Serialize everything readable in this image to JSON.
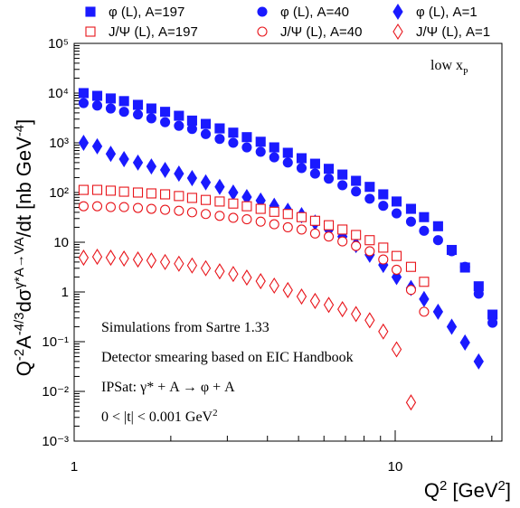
{
  "chart_data": {
    "type": "scatter",
    "x": [
      1.07,
      1.18,
      1.3,
      1.43,
      1.58,
      1.74,
      1.92,
      2.12,
      2.33,
      2.57,
      2.84,
      3.13,
      3.45,
      3.81,
      4.2,
      4.63,
      5.11,
      5.63,
      6.21,
      6.85,
      7.55,
      8.33,
      9.18,
      10.1,
      11.2,
      12.3,
      13.6,
      15.0,
      16.5,
      18.2,
      20.1
    ],
    "series": [
      {
        "name": "φ (L), A=197",
        "color": "#1a1aff",
        "marker": "square",
        "filled": true,
        "values": [
          10000,
          8800,
          7800,
          6900,
          5800,
          4900,
          4200,
          3500,
          2800,
          2400,
          1950,
          1600,
          1300,
          1050,
          810,
          630,
          490,
          380,
          300,
          230,
          172,
          130,
          92,
          66,
          47,
          32,
          21,
          7,
          3.1,
          1.3,
          0.35
        ]
      },
      {
        "name": "φ (L), A=40",
        "color": "#1a1aff",
        "marker": "circle",
        "filled": true,
        "values": [
          6300,
          5600,
          4900,
          4200,
          3700,
          3100,
          2600,
          2200,
          1900,
          1500,
          1200,
          1000,
          810,
          660,
          510,
          400,
          310,
          240,
          190,
          140,
          105,
          75,
          54,
          38,
          26,
          17,
          11,
          6.6,
          3.2,
          0.92,
          0.24
        ]
      },
      {
        "name": "φ (L), A=1",
        "color": "#1a1aff",
        "marker": "diamond",
        "filled": true,
        "values": [
          1000,
          850,
          600,
          470,
          400,
          335,
          285,
          240,
          195,
          160,
          130,
          100,
          81,
          69,
          54,
          43,
          35,
          25,
          18,
          13,
          8.8,
          5.6,
          3.5,
          2.0,
          1.2,
          0.72,
          0.4,
          0.2,
          0.096,
          0.04,
          null
        ]
      },
      {
        "name": "J/Ψ (L), A=197",
        "color": "#e8141a",
        "marker": "square",
        "filled": false,
        "values": [
          113,
          113,
          109,
          104,
          100,
          96,
          92,
          85,
          78,
          71,
          66,
          60,
          53,
          47,
          41,
          37,
          32,
          27,
          22,
          18,
          14,
          11,
          7.8,
          5.3,
          3.2,
          1.6,
          null,
          null,
          null,
          null,
          null
        ]
      },
      {
        "name": "J/Ψ (L), A=40",
        "color": "#e8141a",
        "marker": "circle",
        "filled": false,
        "values": [
          53,
          53,
          51,
          51,
          49,
          47,
          45,
          43,
          40,
          37,
          34,
          31,
          29,
          26,
          23,
          20,
          18,
          15,
          13,
          10.4,
          8.4,
          6.6,
          4.5,
          2.8,
          1.1,
          0.4,
          null,
          null,
          null,
          null,
          null
        ]
      },
      {
        "name": "J/Ψ (L), A=1",
        "color": "#e8141a",
        "marker": "diamond",
        "filled": false,
        "values": [
          4.9,
          5.1,
          4.9,
          4.7,
          4.5,
          4.3,
          4.0,
          3.7,
          3.4,
          3.0,
          2.6,
          2.3,
          1.95,
          1.65,
          1.34,
          1.09,
          0.81,
          0.66,
          0.55,
          0.45,
          0.36,
          0.27,
          0.16,
          0.07,
          0.006,
          null,
          null,
          null,
          null,
          null,
          null
        ]
      }
    ],
    "xlim": [
      1,
      21.5
    ],
    "ylim": [
      0.001,
      100000
    ],
    "xticks": [
      1,
      10
    ],
    "yticks": [
      {
        "value": 0.001,
        "label": "10⁻³"
      },
      {
        "value": 0.01,
        "label": "10⁻²"
      },
      {
        "value": 0.1,
        "label": "10⁻¹"
      },
      1,
      10,
      {
        "value": 100,
        "label": "10²"
      },
      {
        "value": 1000,
        "label": "10³"
      },
      {
        "value": 10000,
        "label": "10⁴"
      },
      {
        "value": 100000,
        "label": "10⁵"
      }
    ],
    "xlog": true,
    "ylog": true,
    "legend": "top",
    "xlabel_parts": [
      "Q",
      "2",
      " [GeV",
      "2",
      "]"
    ],
    "ylabel_parts": [
      "Q",
      "-2",
      "A",
      "-4/3",
      "dσ",
      "γ*A→VA",
      "/dt  [nb GeV",
      "-4",
      "]"
    ],
    "corner_label": {
      "text": "low x",
      "subscript": "P"
    },
    "notes": [
      [
        "Simulations from Sartre 1.33"
      ],
      [
        "Detector smearing based on EIC Handbook"
      ],
      [
        "IPSat:  γ* + A  →  φ + A"
      ],
      [
        "0 < |t| < 0.001 GeV",
        "2"
      ]
    ]
  }
}
